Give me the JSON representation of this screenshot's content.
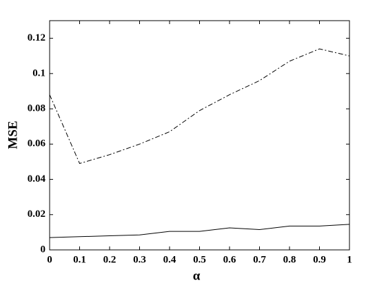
{
  "chart_data": {
    "type": "line",
    "x_label": "α",
    "y_label": "MSE",
    "x": [
      0,
      0.1,
      0.2,
      0.3,
      0.4,
      0.5,
      0.6,
      0.7,
      0.8,
      0.9,
      1
    ],
    "series": [
      {
        "color": "#000000",
        "style": "dashdot",
        "values": [
          0.088,
          0.049,
          0.054,
          0.06,
          0.067,
          0.079,
          0.088,
          0.096,
          0.107,
          0.114,
          0.11
        ]
      },
      {
        "color": "#000000",
        "style": "solid",
        "values": [
          0.007,
          0.0075,
          0.008,
          0.0085,
          0.0105,
          0.0105,
          0.0125,
          0.0115,
          0.0135,
          0.0135,
          0.0145
        ]
      }
    ],
    "xlim": [
      0,
      1
    ],
    "xticks": [
      0,
      0.1,
      0.2,
      0.3,
      0.4,
      0.5,
      0.6,
      0.7,
      0.8,
      0.9,
      1
    ],
    "ylim": [
      0,
      0.13
    ],
    "yticks": [
      0,
      0.02,
      0.04,
      0.06,
      0.08,
      0.1,
      0.12
    ],
    "grid": false,
    "box": true
  }
}
